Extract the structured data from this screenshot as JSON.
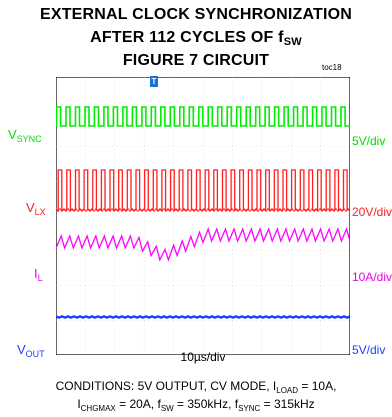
{
  "chart_data": {
    "type": "oscilloscope",
    "title": {
      "line1": "EXTERNAL CLOCK SYNCHRONIZATION",
      "line2_main": "AFTER 112 CYCLES OF f",
      "line2_sub": "SW",
      "line3": "FIGURE 7 CIRCUIT"
    },
    "tag": "toc18",
    "trigger_marker": "T",
    "timebase": "10µs/div",
    "grid": {
      "divisions_x": 10,
      "divisions_y": 8
    },
    "channels": [
      {
        "label_main": "V",
        "label_sub": "SYNC",
        "scale": "5V/div",
        "color": "#00ee00",
        "kind": "square",
        "cycles": 31
      },
      {
        "label_main": "V",
        "label_sub": "LX",
        "scale": "20V/div",
        "color": "#ff2020",
        "kind": "pulses",
        "cycles": 34
      },
      {
        "label_main": "I",
        "label_sub": "L",
        "scale": "10A/div",
        "color": "#ff00ff",
        "kind": "sawtooth",
        "cycles": 34
      },
      {
        "label_main": "V",
        "label_sub": "OUT",
        "scale": "5V/div",
        "color": "#1a3fff",
        "kind": "dc",
        "cycles": 0
      }
    ],
    "conditions": {
      "l1_a": "CONDITIONS: 5V OUTPUT, CV MODE, I",
      "l1_sub": "LOAD",
      "l1_b": " = 10A,",
      "l2_a": "I",
      "l2_sub1": "CHGMAX",
      "l2_b": " = 20A, f",
      "l2_sub2": "SW",
      "l2_c": " = 350kHz, f",
      "l2_sub3": "SYNC",
      "l2_d": " = 315kHz"
    }
  }
}
